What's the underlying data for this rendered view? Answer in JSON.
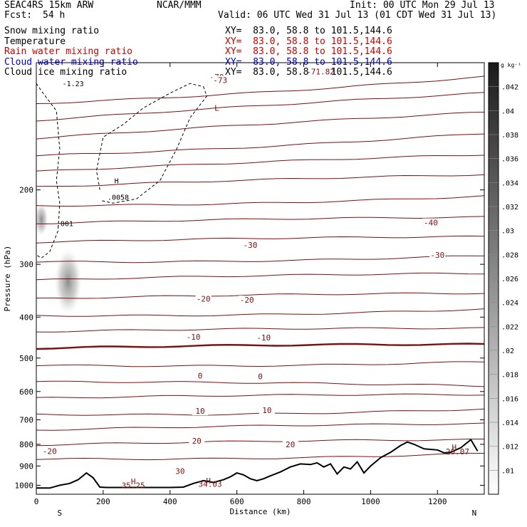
{
  "header": {
    "model": "SEAC4RS 15km ARW",
    "center": "NCAR/MMM",
    "init": "Init: 00 UTC Mon 29 Jul 13",
    "fcst_label": "Fcst:",
    "fcst_value": "54 h",
    "valid": "Valid: 06 UTC Wed 31 Jul 13 (01 CDT Wed 31 Jul 13)"
  },
  "legend": [
    {
      "label": "Snow mixing ratio",
      "xy": "XY=  83.0, 58.8 to 101.5,144.6",
      "color": "#000000",
      "xy_color": "#000000"
    },
    {
      "label": "Temperature",
      "xy": "XY=  83.0, 58.8 to 101.5,144.6",
      "color": "#000000",
      "xy_color": "#cc0000"
    },
    {
      "label": "Rain water mixing ratio",
      "xy": "XY=  83.0, 58.8 to 101.5,144.6",
      "color": "#cc0000",
      "xy_color": "#cc0000"
    },
    {
      "label": "Cloud water mixing ratio",
      "xy": "XY=  83.0, 58.8 to 101.5,144.6",
      "color": "#0000cc",
      "xy_color": "#0000cc"
    },
    {
      "label": "Cloud ice mixing ratio",
      "xy": "XY=  83.0, 58.8 to 101.5,144.6",
      "color": "#000000",
      "xy_color": "#000000"
    }
  ],
  "colors": {
    "isotherm": "#7a1010",
    "freezing_line": "#7a1010",
    "terrain": "#000000",
    "cloud_ice": "#000000",
    "text_contour": "#7a1010"
  },
  "chart_data": {
    "type": "cross-section",
    "xlabel": "Distance (km)",
    "ylabel": "Pressure (hPa)",
    "xlim": [
      0,
      1340
    ],
    "ylim": [
      1050,
      100
    ],
    "y_log": true,
    "x_ticks": [
      0,
      200,
      400,
      600,
      800,
      1000,
      1200
    ],
    "y_ticks": [
      200,
      300,
      400,
      500,
      600,
      700,
      800,
      900,
      1000
    ],
    "left_endpoint": "S",
    "right_endpoint": "N",
    "isotherm_labels": [
      {
        "text": "-70",
        "x": 540,
        "p": 108
      },
      {
        "text": "-73",
        "x": 550,
        "p": 110
      },
      {
        "text": "-71.82",
        "x": 850,
        "p": 105
      },
      {
        "text": "-40",
        "x": 1180,
        "p": 239
      },
      {
        "text": "-30",
        "x": 640,
        "p": 270
      },
      {
        "text": "-30",
        "x": 1200,
        "p": 285
      },
      {
        "text": "-20",
        "x": 500,
        "p": 362
      },
      {
        "text": "-20",
        "x": 630,
        "p": 364
      },
      {
        "text": "-10",
        "x": 470,
        "p": 445
      },
      {
        "text": "-10",
        "x": 680,
        "p": 447
      },
      {
        "text": "0",
        "x": 490,
        "p": 550
      },
      {
        "text": "0",
        "x": 670,
        "p": 552
      },
      {
        "text": "10",
        "x": 490,
        "p": 667
      },
      {
        "text": "10",
        "x": 690,
        "p": 664
      },
      {
        "text": "20",
        "x": 480,
        "p": 785
      },
      {
        "text": "20",
        "x": 760,
        "p": 800
      },
      {
        "text": "-20",
        "x": 40,
        "p": 830
      },
      {
        "text": "30",
        "x": 430,
        "p": 925
      }
    ],
    "isotherm_levels": [
      {
        "level": -70,
        "p_left": 125,
        "p_right": 108
      },
      {
        "level": -65,
        "p_left": 137,
        "p_right": 118
      },
      {
        "level": -60,
        "p_left": 151,
        "p_right": 131
      },
      {
        "level": -55,
        "p_left": 166,
        "p_right": 147
      },
      {
        "level": -50,
        "p_left": 181,
        "p_right": 165
      },
      {
        "level": -45,
        "p_left": 197,
        "p_right": 184
      },
      {
        "level": -40,
        "p_left": 218,
        "p_right": 207
      },
      {
        "level": -35,
        "p_left": 240,
        "p_right": 232
      },
      {
        "level": -30,
        "p_left": 266,
        "p_right": 258
      },
      {
        "level": -25,
        "p_left": 296,
        "p_right": 286
      },
      {
        "level": -20,
        "p_left": 327,
        "p_right": 315
      },
      {
        "level": -15,
        "p_left": 362,
        "p_right": 351
      },
      {
        "level": -10,
        "p_left": 397,
        "p_right": 383
      },
      {
        "level": -5,
        "p_left": 433,
        "p_right": 425
      },
      {
        "level": 0,
        "p_left": 474,
        "p_right": 464
      },
      {
        "level": 5,
        "p_left": 520,
        "p_right": 510
      },
      {
        "level": 10,
        "p_left": 569,
        "p_right": 582
      },
      {
        "level": 15,
        "p_left": 622,
        "p_right": 610
      },
      {
        "level": 20,
        "p_left": 680,
        "p_right": 660
      },
      {
        "level": 25,
        "p_left": 740,
        "p_right": 715
      },
      {
        "level": 30,
        "p_left": 803,
        "p_right": 780
      },
      {
        "level": 35,
        "p_left": 866,
        "p_right": 840
      }
    ],
    "terrain_profile": [
      [
        0,
        1015
      ],
      [
        40,
        1015
      ],
      [
        70,
        1000
      ],
      [
        100,
        990
      ],
      [
        125,
        970
      ],
      [
        150,
        935
      ],
      [
        170,
        960
      ],
      [
        190,
        1010
      ],
      [
        210,
        1012
      ],
      [
        300,
        1012
      ],
      [
        400,
        1012
      ],
      [
        440,
        1010
      ],
      [
        470,
        990
      ],
      [
        500,
        975
      ],
      [
        530,
        985
      ],
      [
        560,
        970
      ],
      [
        580,
        955
      ],
      [
        600,
        935
      ],
      [
        620,
        945
      ],
      [
        640,
        965
      ],
      [
        660,
        975
      ],
      [
        680,
        965
      ],
      [
        700,
        950
      ],
      [
        730,
        930
      ],
      [
        760,
        905
      ],
      [
        790,
        890
      ],
      [
        820,
        893
      ],
      [
        840,
        885
      ],
      [
        860,
        905
      ],
      [
        880,
        890
      ],
      [
        900,
        940
      ],
      [
        920,
        905
      ],
      [
        940,
        915
      ],
      [
        960,
        880
      ],
      [
        980,
        935
      ],
      [
        1000,
        900
      ],
      [
        1030,
        860
      ],
      [
        1060,
        835
      ],
      [
        1090,
        805
      ],
      [
        1110,
        790
      ],
      [
        1130,
        800
      ],
      [
        1160,
        820
      ],
      [
        1200,
        825
      ],
      [
        1220,
        838
      ],
      [
        1240,
        835
      ],
      [
        1270,
        815
      ],
      [
        1300,
        780
      ],
      [
        1320,
        830
      ]
    ],
    "cloud_ice_contour_labels": [
      {
        "text": ".001",
        "x": 85,
        "p": 240
      },
      {
        "text": "-1.23",
        "x": 110,
        "p": 112
      },
      {
        "text": "H",
        "x": 240,
        "p": 190
      },
      {
        "text": ".0058",
        "x": 245,
        "p": 208
      }
    ],
    "extrema": [
      {
        "text": "H",
        "x": 290,
        "p": 980
      },
      {
        "text": "35.25",
        "x": 290,
        "p": 1000
      },
      {
        "text": "H",
        "x": 515,
        "p": 975
      },
      {
        "text": "34.03",
        "x": 520,
        "p": 993
      },
      {
        "text": "H",
        "x": 1250,
        "p": 813
      },
      {
        "text": "26.07",
        "x": 1260,
        "p": 832
      },
      {
        "text": "L",
        "x": 540,
        "p": 128
      }
    ],
    "snow_shading": [
      {
        "x": 15,
        "p": 235,
        "radius_km": 20
      },
      {
        "x": 95,
        "p": 330,
        "radius_km": 40
      }
    ],
    "colorbar": {
      "unit": "g kg⁻¹",
      "ticks": [
        ".01",
        ".012",
        ".014",
        ".016",
        ".018",
        ".02",
        ".022",
        ".024",
        ".026",
        ".028",
        ".03",
        ".032",
        ".034",
        ".036",
        ".038",
        ".04",
        ".042"
      ]
    }
  }
}
